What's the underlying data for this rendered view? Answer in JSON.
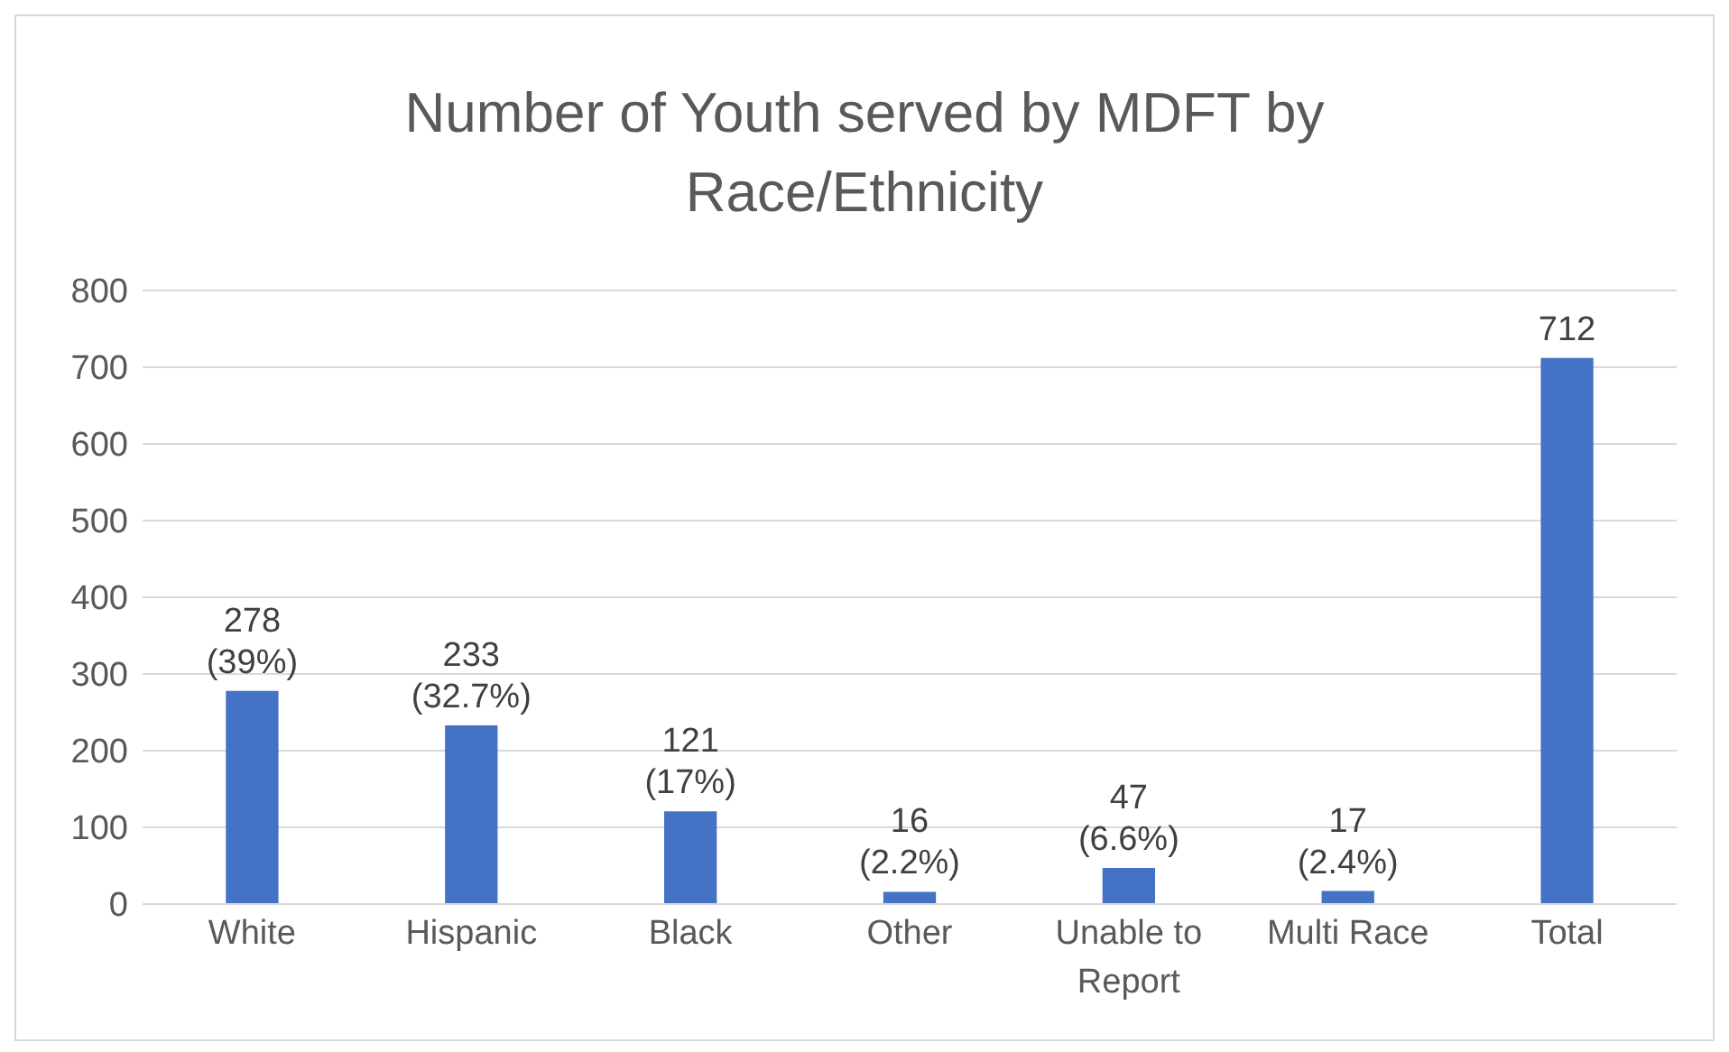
{
  "chart_data": {
    "type": "bar",
    "title": "Number of Youth served by MDFT by Race/Ethnicity",
    "categories": [
      "White",
      "Hispanic",
      "Black",
      "Other",
      "Unable to Report",
      "Multi Race",
      "Total"
    ],
    "values": [
      278,
      233,
      121,
      16,
      47,
      17,
      712
    ],
    "value_labels": [
      "278\n(39%)",
      "233\n(32.7%)",
      "121\n(17%)",
      "16\n(2.2%)",
      "47\n(6.6%)",
      "17\n(2.4%)",
      "712"
    ],
    "color": "#4472c4",
    "ylim": [
      0,
      800
    ],
    "yticks": [
      0,
      100,
      200,
      300,
      400,
      500,
      600,
      700,
      800
    ],
    "grid": "y"
  }
}
